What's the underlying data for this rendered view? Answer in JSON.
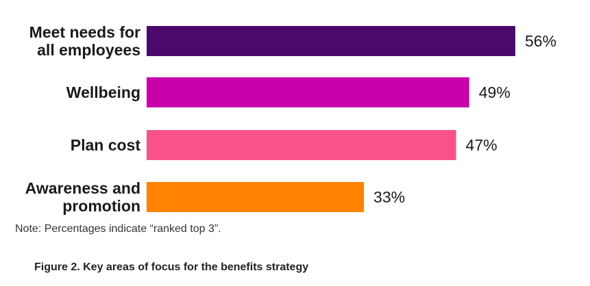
{
  "chart_data": {
    "type": "bar",
    "orientation": "horizontal",
    "categories": [
      [
        "Meet needs for",
        "all employees"
      ],
      [
        "Wellbeing"
      ],
      [
        "Plan cost"
      ],
      [
        "Awareness and",
        "promotion"
      ]
    ],
    "values": [
      56,
      49,
      47,
      33
    ],
    "value_labels": [
      "56%",
      "49%",
      "47%",
      "33%"
    ],
    "colors": [
      "#4b086d",
      "#c800aa",
      "#f7538a",
      "#ff8200"
    ],
    "unit": "%",
    "xlim": [
      0,
      56
    ],
    "grid": false,
    "legend": "none"
  },
  "note": "Note: Percentages indicate “ranked top 3”.",
  "caption": "Figure 2. Key areas of focus for the benefits strategy"
}
